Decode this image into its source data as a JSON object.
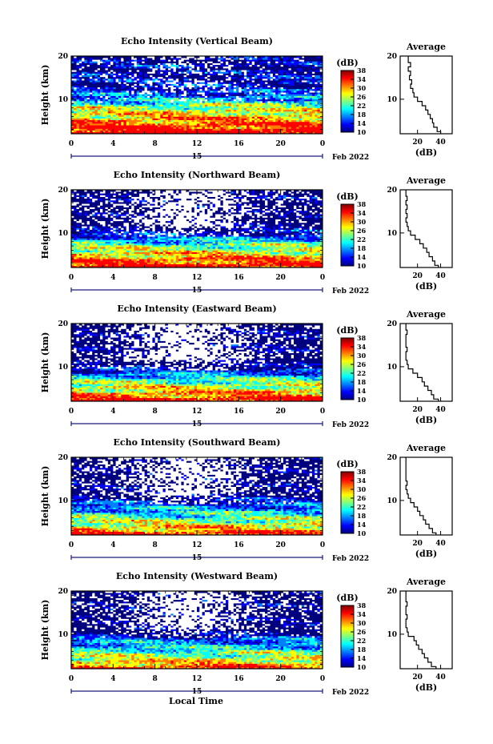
{
  "colors": {
    "jet": [
      "#00007f",
      "#0000ff",
      "#007fff",
      "#00ffff",
      "#7fff7f",
      "#ffff00",
      "#ff7f00",
      "#ff0000",
      "#7f0000"
    ],
    "missing": "#ffffff"
  },
  "figure": {
    "xlabel": "Local Time",
    "date_label": "Feb 2022",
    "day_label": "15",
    "ylabel": "Height (km)",
    "colorbar_label": "(dB)",
    "colorbar_ticks": [
      "10",
      "14",
      "18",
      "22",
      "26",
      "30",
      "34",
      "38"
    ],
    "colorbar_range": [
      10,
      38
    ],
    "avg_title": "Average",
    "avg_xlabel": "(dB)",
    "avg_xticks": [
      "20",
      "40"
    ],
    "avg_xlim": [
      5,
      50
    ]
  },
  "chart_data": [
    {
      "type": "heatmap",
      "title": "Echo Intensity (Vertical Beam)",
      "xlabel": "Local Time",
      "ylabel": "Height (km)",
      "xlim": [
        0,
        24
      ],
      "ylim": [
        2,
        20
      ],
      "xticks": [
        "0",
        "4",
        "8",
        "12",
        "16",
        "20",
        "0"
      ],
      "yticks": [
        "10",
        "20"
      ],
      "colorbar": {
        "label": "(dB)",
        "range": [
          10,
          38
        ],
        "ticks": [
          10,
          14,
          18,
          22,
          26,
          30,
          34,
          38
        ]
      },
      "profile": {
        "heights": [
          2,
          3,
          4,
          5,
          6,
          7,
          8,
          9,
          10,
          11,
          12,
          13,
          14,
          15,
          16,
          17,
          18,
          19,
          20
        ],
        "values": [
          40,
          37,
          34,
          33,
          31,
          29,
          27,
          24,
          20,
          17,
          16,
          14,
          15,
          13,
          14,
          12,
          14,
          12,
          12
        ]
      },
      "missing_fraction": 0.12
    },
    {
      "type": "heatmap",
      "title": "Echo Intensity (Northward Beam)",
      "xlabel": "Local Time",
      "ylabel": "Height (km)",
      "xlim": [
        0,
        24
      ],
      "ylim": [
        2,
        20
      ],
      "xticks": [
        "0",
        "4",
        "8",
        "12",
        "16",
        "20",
        "0"
      ],
      "yticks": [
        "10",
        "20"
      ],
      "colorbar": {
        "label": "(dB)",
        "range": [
          10,
          38
        ],
        "ticks": [
          10,
          14,
          18,
          22,
          26,
          30,
          34,
          38
        ]
      },
      "profile": {
        "heights": [
          2,
          3,
          4,
          5,
          6,
          7,
          8,
          9,
          10,
          11,
          12,
          13,
          14,
          15,
          16,
          17,
          18,
          19,
          20
        ],
        "values": [
          38,
          35,
          33,
          30,
          28,
          25,
          22,
          18,
          14,
          12,
          11,
          10,
          11,
          10,
          11,
          10,
          11,
          10,
          10
        ]
      },
      "missing_fraction": 0.3
    },
    {
      "type": "heatmap",
      "title": "Echo Intensity (Eastward Beam)",
      "xlabel": "Local Time",
      "ylabel": "Height (km)",
      "xlim": [
        0,
        24
      ],
      "ylim": [
        2,
        20
      ],
      "xticks": [
        "0",
        "4",
        "8",
        "12",
        "16",
        "20",
        "0"
      ],
      "yticks": [
        "10",
        "20"
      ],
      "colorbar": {
        "label": "(dB)",
        "range": [
          10,
          38
        ],
        "ticks": [
          10,
          14,
          18,
          22,
          26,
          30,
          34,
          38
        ]
      },
      "profile": {
        "heights": [
          2,
          3,
          4,
          5,
          6,
          7,
          8,
          9,
          10,
          11,
          12,
          13,
          14,
          15,
          16,
          17,
          18,
          19,
          20
        ],
        "values": [
          38,
          34,
          32,
          29,
          26,
          24,
          20,
          16,
          12,
          11,
          10,
          10,
          11,
          10,
          10,
          10,
          11,
          10,
          10
        ]
      },
      "missing_fraction": 0.32
    },
    {
      "type": "heatmap",
      "title": "Echo Intensity (Southward Beam)",
      "xlabel": "Local Time",
      "ylabel": "Height (km)",
      "xlim": [
        0,
        24
      ],
      "ylim": [
        2,
        20
      ],
      "xticks": [
        "0",
        "4",
        "8",
        "12",
        "16",
        "20",
        "0"
      ],
      "yticks": [
        "10",
        "20"
      ],
      "colorbar": {
        "label": "(dB)",
        "range": [
          10,
          38
        ],
        "ticks": [
          10,
          14,
          18,
          22,
          26,
          30,
          34,
          38
        ]
      },
      "profile": {
        "heights": [
          2,
          3,
          4,
          5,
          6,
          7,
          8,
          9,
          10,
          11,
          12,
          13,
          14,
          15,
          16,
          17,
          18,
          19,
          20
        ],
        "values": [
          36,
          33,
          30,
          27,
          25,
          22,
          20,
          17,
          14,
          12,
          11,
          10,
          11,
          10,
          10,
          10,
          10,
          10,
          10
        ]
      },
      "missing_fraction": 0.3
    },
    {
      "type": "heatmap",
      "title": "Echo Intensity (Westward Beam)",
      "xlabel": "Local Time",
      "ylabel": "Height (km)",
      "xlim": [
        0,
        24
      ],
      "ylim": [
        2,
        20
      ],
      "xticks": [
        "0",
        "4",
        "8",
        "12",
        "16",
        "20",
        "0"
      ],
      "yticks": [
        "10",
        "20"
      ],
      "colorbar": {
        "label": "(dB)",
        "range": [
          10,
          38
        ],
        "ticks": [
          10,
          14,
          18,
          22,
          26,
          30,
          34,
          38
        ]
      },
      "profile": {
        "heights": [
          2,
          3,
          4,
          5,
          6,
          7,
          8,
          9,
          10,
          11,
          12,
          13,
          14,
          15,
          16,
          17,
          18,
          19,
          20
        ],
        "values": [
          36,
          32,
          29,
          26,
          24,
          21,
          19,
          17,
          12,
          11,
          10,
          10,
          11,
          10,
          10,
          11,
          10,
          10,
          10
        ]
      },
      "missing_fraction": 0.3
    }
  ]
}
